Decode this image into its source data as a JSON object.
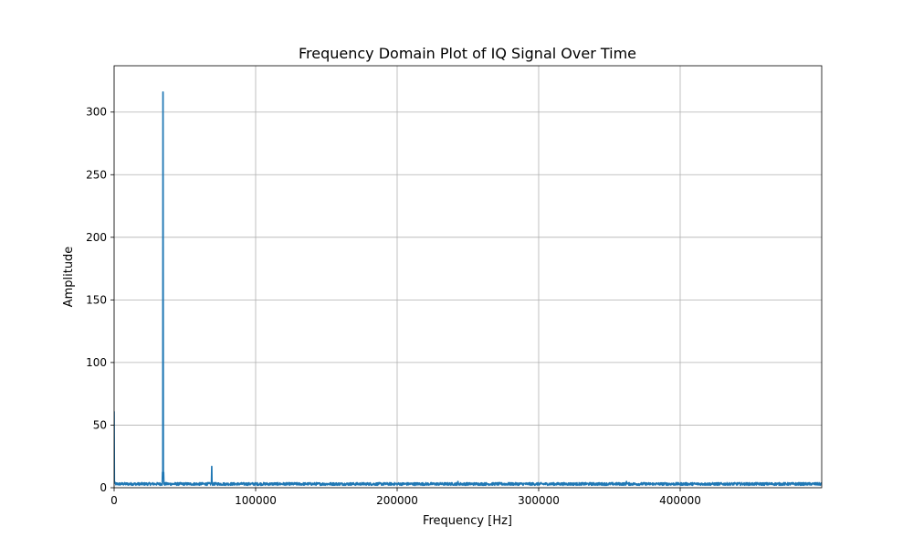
{
  "chart_data": {
    "type": "line",
    "title": "Frequency Domain Plot of IQ Signal Over Time",
    "xlabel": "Frequency [Hz]",
    "ylabel": "Amplitude",
    "xlim": [
      0,
      500000
    ],
    "ylim": [
      0,
      337
    ],
    "xticks": [
      0,
      100000,
      200000,
      300000,
      400000
    ],
    "xtick_labels": [
      "0",
      "100000",
      "200000",
      "300000",
      "400000"
    ],
    "yticks": [
      0,
      50,
      100,
      150,
      200,
      250,
      300
    ],
    "ytick_labels": [
      "0",
      "50",
      "100",
      "150",
      "200",
      "250",
      "300"
    ],
    "grid": true,
    "line_color": "#1f77b4",
    "noise_floor": 3,
    "series": [
      {
        "peaks": [
          {
            "x": 0,
            "y": 61
          },
          {
            "x": 34500,
            "y": 316
          },
          {
            "x": 69000,
            "y": 17
          },
          {
            "x": 243000,
            "y": 5
          },
          {
            "x": 362000,
            "y": 5
          }
        ]
      }
    ]
  }
}
